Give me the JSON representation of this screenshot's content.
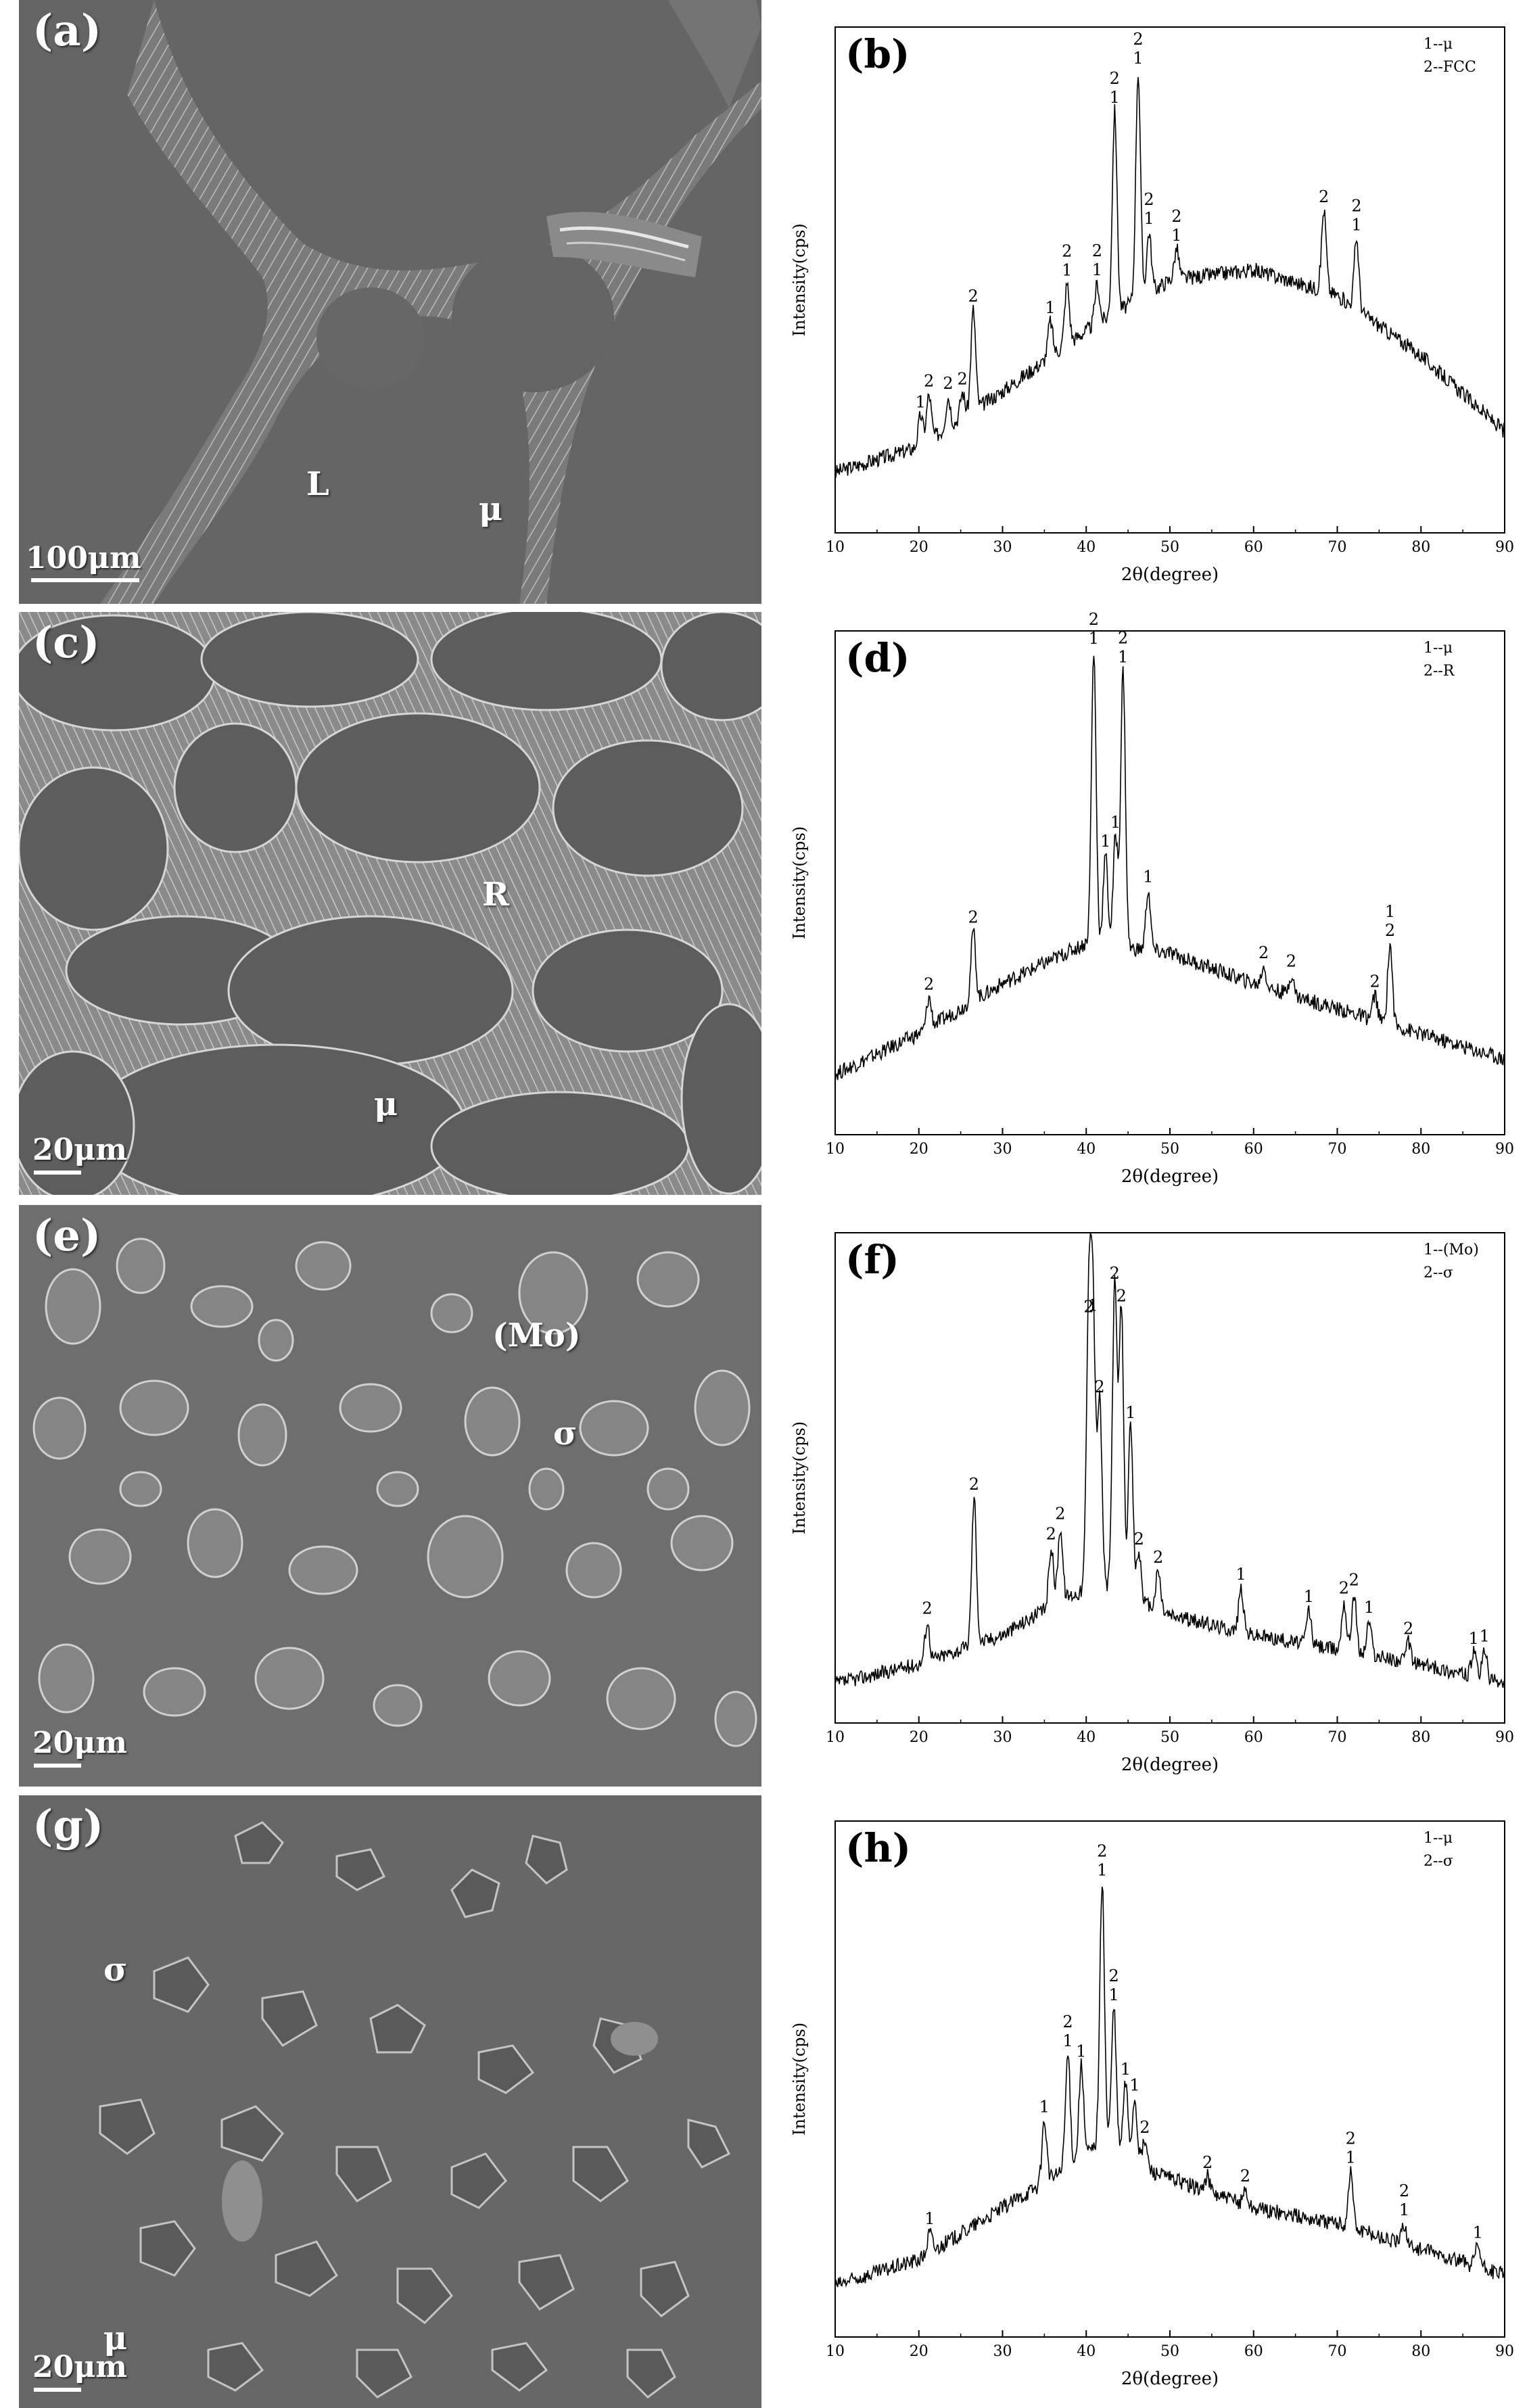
{
  "figure": {
    "panels": [
      {
        "id": "a",
        "letter": "(a)",
        "kind": "micrograph",
        "phases": [
          "L",
          "μ"
        ],
        "scale_bar": "100μm"
      },
      {
        "id": "b",
        "letter": "(b)",
        "kind": "xrd",
        "legend": [
          "1--μ",
          "2--FCC"
        ]
      },
      {
        "id": "c",
        "letter": "(c)",
        "kind": "micrograph",
        "phases": [
          "R",
          "μ"
        ],
        "scale_bar": "20μm"
      },
      {
        "id": "d",
        "letter": "(d)",
        "kind": "xrd",
        "legend": [
          "1--μ",
          "2--R"
        ]
      },
      {
        "id": "e",
        "letter": "(e)",
        "kind": "micrograph",
        "phases": [
          "(Mo)",
          "σ"
        ],
        "scale_bar": "20μm"
      },
      {
        "id": "f",
        "letter": "(f)",
        "kind": "xrd",
        "legend": [
          "1--(Mo)",
          "2--σ"
        ]
      },
      {
        "id": "g",
        "letter": "(g)",
        "kind": "micrograph",
        "phases": [
          "σ",
          "μ"
        ],
        "scale_bar": "20μm"
      },
      {
        "id": "h",
        "letter": "(h)",
        "kind": "xrd",
        "legend": [
          "1--μ",
          "2--σ"
        ]
      }
    ]
  },
  "chart_data": [
    {
      "panel": "b",
      "type": "line",
      "xlabel": "2θ(degree)",
      "ylabel": "Intensity(cps)",
      "xlim": [
        10,
        90
      ],
      "xticks": [
        10,
        20,
        30,
        40,
        50,
        60,
        70,
        80,
        90
      ],
      "ylim": [
        0,
        100
      ],
      "background": [
        [
          10,
          12
        ],
        [
          20,
          17
        ],
        [
          30,
          28
        ],
        [
          40,
          40
        ],
        [
          50,
          50
        ],
        [
          60,
          52
        ],
        [
          70,
          47
        ],
        [
          80,
          35
        ],
        [
          90,
          20
        ]
      ],
      "peaks": [
        {
          "x": 20.2,
          "y": 6,
          "labels": [
            "1"
          ]
        },
        {
          "x": 21.2,
          "y": 9,
          "labels": [
            "2"
          ]
        },
        {
          "x": 23.5,
          "y": 6,
          "labels": [
            "2"
          ]
        },
        {
          "x": 25.2,
          "y": 5,
          "labels": [
            "2"
          ]
        },
        {
          "x": 26.5,
          "y": 20,
          "labels": [
            "2"
          ]
        },
        {
          "x": 35.7,
          "y": 7,
          "labels": [
            "1"
          ]
        },
        {
          "x": 37.7,
          "y": 12,
          "labels": [
            "2",
            "1"
          ]
        },
        {
          "x": 41.3,
          "y": 8,
          "labels": [
            "2",
            "1"
          ]
        },
        {
          "x": 43.4,
          "y": 40,
          "labels": [
            "2",
            "1"
          ]
        },
        {
          "x": 46.2,
          "y": 45,
          "labels": [
            "2",
            "1"
          ]
        },
        {
          "x": 47.5,
          "y": 12,
          "labels": [
            "2",
            "1"
          ]
        },
        {
          "x": 50.8,
          "y": 6,
          "labels": [
            "2",
            "1"
          ]
        },
        {
          "x": 68.4,
          "y": 16,
          "labels": [
            "2"
          ]
        },
        {
          "x": 72.3,
          "y": 14,
          "labels": [
            "2",
            "1"
          ]
        }
      ]
    },
    {
      "panel": "d",
      "type": "line",
      "xlabel": "2θ(degree)",
      "ylabel": "Intensity(cps)",
      "xlim": [
        10,
        90
      ],
      "xticks": [
        10,
        20,
        30,
        40,
        50,
        60,
        70,
        80,
        90
      ],
      "ylim": [
        0,
        100
      ],
      "background": [
        [
          10,
          12
        ],
        [
          20,
          20
        ],
        [
          30,
          30
        ],
        [
          40,
          38
        ],
        [
          50,
          36
        ],
        [
          60,
          30
        ],
        [
          70,
          25
        ],
        [
          80,
          20
        ],
        [
          90,
          15
        ]
      ],
      "peaks": [
        {
          "x": 21.2,
          "y": 6,
          "labels": [
            "2"
          ]
        },
        {
          "x": 26.5,
          "y": 14,
          "labels": [
            "2"
          ]
        },
        {
          "x": 40.9,
          "y": 58,
          "labels": [
            "2",
            "1"
          ]
        },
        {
          "x": 42.3,
          "y": 18,
          "labels": [
            "1"
          ]
        },
        {
          "x": 43.5,
          "y": 22,
          "labels": [
            "1"
          ]
        },
        {
          "x": 44.4,
          "y": 55,
          "labels": [
            "2",
            "1"
          ]
        },
        {
          "x": 47.4,
          "y": 12,
          "labels": [
            "1"
          ]
        },
        {
          "x": 61.2,
          "y": 4,
          "labels": [
            "2"
          ]
        },
        {
          "x": 64.5,
          "y": 4,
          "labels": [
            "2"
          ]
        },
        {
          "x": 74.5,
          "y": 5,
          "labels": [
            "2"
          ]
        },
        {
          "x": 76.3,
          "y": 16,
          "labels": [
            "1",
            "2"
          ]
        }
      ]
    },
    {
      "panel": "f",
      "type": "line",
      "xlabel": "2θ(degree)",
      "ylabel": "Intensity(cps)",
      "xlim": [
        10,
        90
      ],
      "xticks": [
        10,
        20,
        30,
        40,
        50,
        60,
        70,
        80,
        90
      ],
      "ylim": [
        0,
        100
      ],
      "background": [
        [
          10,
          8
        ],
        [
          20,
          12
        ],
        [
          30,
          18
        ],
        [
          38,
          26
        ],
        [
          42,
          28
        ],
        [
          50,
          22
        ],
        [
          60,
          18
        ],
        [
          70,
          15
        ],
        [
          80,
          12
        ],
        [
          90,
          8
        ]
      ],
      "peaks": [
        {
          "x": 21.0,
          "y": 8,
          "labels": [
            "2"
          ]
        },
        {
          "x": 26.6,
          "y": 30,
          "labels": [
            "2"
          ]
        },
        {
          "x": 35.8,
          "y": 12,
          "labels": [
            "2"
          ]
        },
        {
          "x": 36.9,
          "y": 15,
          "labels": [
            "2"
          ]
        },
        {
          "x": 40.3,
          "y": 55,
          "labels": [
            "2"
          ]
        },
        {
          "x": 40.8,
          "y": 55,
          "labels": [
            "1"
          ]
        },
        {
          "x": 41.6,
          "y": 38,
          "labels": [
            "2"
          ]
        },
        {
          "x": 43.4,
          "y": 62,
          "labels": [
            "2"
          ]
        },
        {
          "x": 44.2,
          "y": 58,
          "labels": [
            "2"
          ]
        },
        {
          "x": 45.3,
          "y": 35,
          "labels": [
            "1"
          ]
        },
        {
          "x": 46.3,
          "y": 10,
          "labels": [
            "2"
          ]
        },
        {
          "x": 48.6,
          "y": 8,
          "labels": [
            "2"
          ]
        },
        {
          "x": 58.5,
          "y": 9,
          "labels": [
            "1"
          ]
        },
        {
          "x": 66.6,
          "y": 7,
          "labels": [
            "1"
          ]
        },
        {
          "x": 70.8,
          "y": 10,
          "labels": [
            "2"
          ]
        },
        {
          "x": 72.0,
          "y": 12,
          "labels": [
            "2"
          ]
        },
        {
          "x": 73.8,
          "y": 7,
          "labels": [
            "1"
          ]
        },
        {
          "x": 78.5,
          "y": 4,
          "labels": [
            "2"
          ]
        },
        {
          "x": 86.3,
          "y": 5,
          "labels": [
            "1"
          ]
        },
        {
          "x": 87.6,
          "y": 6,
          "labels": [
            "1"
          ]
        }
      ]
    },
    {
      "panel": "h",
      "type": "line",
      "xlabel": "2θ(degree)",
      "ylabel": "Intensity(cps)",
      "xlim": [
        10,
        90
      ],
      "xticks": [
        10,
        20,
        30,
        40,
        50,
        60,
        70,
        80,
        90
      ],
      "ylim": [
        0,
        100
      ],
      "background": [
        [
          10,
          10
        ],
        [
          20,
          15
        ],
        [
          30,
          25
        ],
        [
          38,
          33
        ],
        [
          42,
          38
        ],
        [
          48,
          32
        ],
        [
          60,
          25
        ],
        [
          70,
          22
        ],
        [
          80,
          17
        ],
        [
          90,
          12
        ]
      ],
      "peaks": [
        {
          "x": 21.3,
          "y": 4,
          "labels": [
            "1"
          ]
        },
        {
          "x": 35.0,
          "y": 12,
          "labels": [
            "1"
          ]
        },
        {
          "x": 37.8,
          "y": 22,
          "labels": [
            "2",
            "1"
          ]
        },
        {
          "x": 39.4,
          "y": 18,
          "labels": [
            "1"
          ]
        },
        {
          "x": 41.9,
          "y": 50,
          "labels": [
            "2",
            "1"
          ]
        },
        {
          "x": 43.3,
          "y": 27,
          "labels": [
            "2",
            "1"
          ]
        },
        {
          "x": 44.7,
          "y": 14,
          "labels": [
            "1"
          ]
        },
        {
          "x": 45.8,
          "y": 12,
          "labels": [
            "1"
          ]
        },
        {
          "x": 47.0,
          "y": 5,
          "labels": [
            "2"
          ]
        },
        {
          "x": 54.5,
          "y": 3,
          "labels": [
            "2"
          ]
        },
        {
          "x": 59.0,
          "y": 3,
          "labels": [
            "2"
          ]
        },
        {
          "x": 71.6,
          "y": 11,
          "labels": [
            "2",
            "1"
          ]
        },
        {
          "x": 78.0,
          "y": 4,
          "labels": [
            "2",
            "1"
          ]
        },
        {
          "x": 86.8,
          "y": 4,
          "labels": [
            "1"
          ]
        }
      ]
    }
  ]
}
